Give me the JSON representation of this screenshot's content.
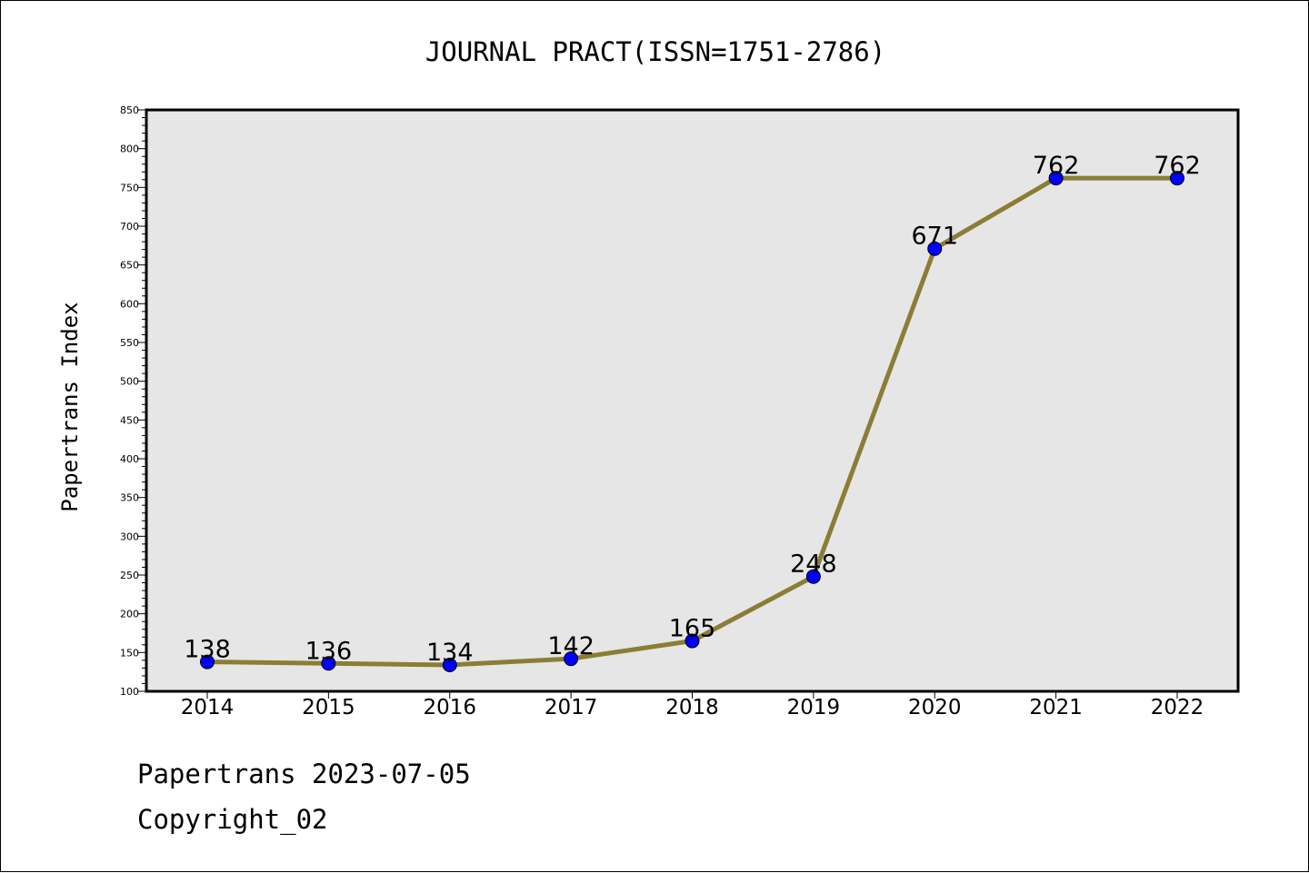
{
  "chart_data": {
    "type": "line",
    "title": "JOURNAL PRACT(ISSN=1751-2786)",
    "xlabel": "",
    "ylabel": "Papertrans Index",
    "x": [
      "2014",
      "2015",
      "2016",
      "2017",
      "2018",
      "2019",
      "2020",
      "2021",
      "2022"
    ],
    "series": [
      {
        "values": [
          138,
          136,
          134,
          142,
          165,
          248,
          671,
          762,
          762
        ]
      }
    ],
    "data_labels": [
      "138",
      "136",
      "134",
      "142",
      "165",
      "248",
      "671",
      "762",
      "762"
    ],
    "ylim": [
      100,
      850
    ],
    "y_ticks": [
      100,
      150,
      200,
      250,
      300,
      350,
      400,
      450,
      500,
      550,
      600,
      650,
      700,
      750,
      800,
      850
    ],
    "grid": false,
    "legend": "none",
    "colors": {
      "line": "#8b7d35",
      "marker": "#0000ff",
      "plot_background": "#e6e6e6"
    }
  },
  "footer": {
    "line1": "Papertrans 2023-07-05",
    "line2": "Copyright_02"
  }
}
